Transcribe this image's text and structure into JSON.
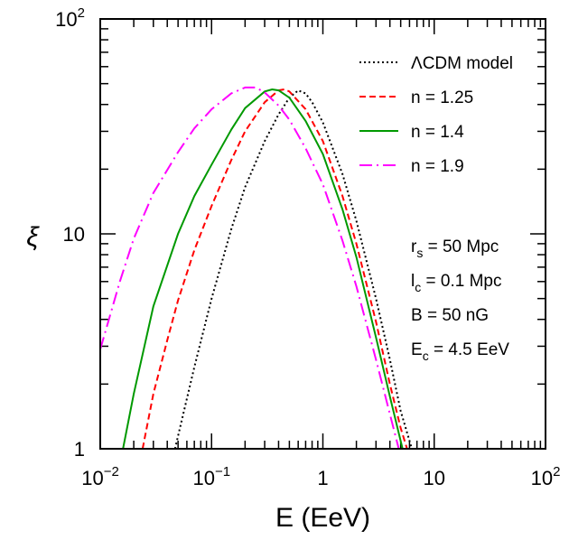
{
  "chart_data": {
    "type": "line",
    "title": "",
    "xlabel": "E (EeV)",
    "ylabel": "ξ",
    "xscale": "log",
    "yscale": "log",
    "xlim": [
      0.01,
      100
    ],
    "ylim": [
      1,
      100
    ],
    "x_ticks": [
      {
        "base": "10",
        "exp": "−2"
      },
      {
        "base": "10",
        "exp": "−1"
      },
      {
        "base": "1",
        "exp": ""
      },
      {
        "base": "10",
        "exp": ""
      },
      {
        "base": "10",
        "exp": "2"
      }
    ],
    "y_ticks": [
      {
        "base": "1",
        "exp": ""
      },
      {
        "base": "10",
        "exp": ""
      },
      {
        "base": "10",
        "exp": "2"
      }
    ],
    "series": [
      {
        "name": "ΛCDM model",
        "color": "#000000",
        "dash": "dotted",
        "points": [
          [
            0.047,
            1.0
          ],
          [
            0.07,
            2.4
          ],
          [
            0.1,
            5.0
          ],
          [
            0.15,
            10.5
          ],
          [
            0.2,
            16.5
          ],
          [
            0.3,
            27
          ],
          [
            0.4,
            36
          ],
          [
            0.5,
            43
          ],
          [
            0.6,
            46.5
          ],
          [
            0.7,
            45
          ],
          [
            0.8,
            41
          ],
          [
            1.0,
            33
          ],
          [
            1.5,
            19
          ],
          [
            2,
            11.5
          ],
          [
            3,
            5.0
          ],
          [
            4,
            2.6
          ],
          [
            5,
            1.5
          ],
          [
            6.3,
            1.0
          ]
        ]
      },
      {
        "name": "n = 1.25",
        "color": "#ff0000",
        "dash": "dashed",
        "points": [
          [
            0.024,
            1.0
          ],
          [
            0.03,
            1.8
          ],
          [
            0.04,
            3.2
          ],
          [
            0.05,
            4.9
          ],
          [
            0.07,
            8.4
          ],
          [
            0.1,
            13.5
          ],
          [
            0.15,
            22
          ],
          [
            0.2,
            30
          ],
          [
            0.3,
            41
          ],
          [
            0.4,
            46.5
          ],
          [
            0.45,
            47
          ],
          [
            0.5,
            46
          ],
          [
            0.7,
            38
          ],
          [
            1.0,
            27
          ],
          [
            1.5,
            15
          ],
          [
            2,
            9
          ],
          [
            3,
            3.9
          ],
          [
            4,
            2.0
          ],
          [
            5,
            1.25
          ],
          [
            5.7,
            1.0
          ]
        ]
      },
      {
        "name": "n = 1.4",
        "color": "#009900",
        "dash": "solid",
        "points": [
          [
            0.016,
            1.0
          ],
          [
            0.02,
            1.8
          ],
          [
            0.03,
            4.6
          ],
          [
            0.05,
            10
          ],
          [
            0.07,
            15
          ],
          [
            0.1,
            21
          ],
          [
            0.15,
            30.5
          ],
          [
            0.2,
            38.5
          ],
          [
            0.3,
            46
          ],
          [
            0.35,
            47
          ],
          [
            0.4,
            46.5
          ],
          [
            0.5,
            43
          ],
          [
            0.7,
            33.5
          ],
          [
            1.0,
            23.5
          ],
          [
            1.5,
            13
          ],
          [
            2,
            7.8
          ],
          [
            3,
            3.3
          ],
          [
            4,
            1.75
          ],
          [
            5.2,
            1.0
          ]
        ]
      },
      {
        "name": "n = 1.9",
        "color": "#ff00ff",
        "dash": "dashdot",
        "points": [
          [
            0.01,
            2.9
          ],
          [
            0.015,
            6
          ],
          [
            0.02,
            9.5
          ],
          [
            0.03,
            15.5
          ],
          [
            0.05,
            24
          ],
          [
            0.07,
            31
          ],
          [
            0.1,
            38
          ],
          [
            0.15,
            45
          ],
          [
            0.2,
            48
          ],
          [
            0.25,
            48
          ],
          [
            0.3,
            45.5
          ],
          [
            0.4,
            39.5
          ],
          [
            0.5,
            34
          ],
          [
            0.7,
            25
          ],
          [
            1.0,
            17
          ],
          [
            1.5,
            9.3
          ],
          [
            2,
            5.7
          ],
          [
            3,
            2.6
          ],
          [
            4,
            1.45
          ],
          [
            4.8,
            1.0
          ]
        ]
      }
    ],
    "legend_position": "top-right",
    "annotations": [
      {
        "id": "rs",
        "main": "r",
        "sub": "s",
        "rest": " = 50 Mpc"
      },
      {
        "id": "lc",
        "main": "l",
        "sub": "c",
        "rest": " = 0.1 Mpc"
      },
      {
        "id": "B",
        "main": "B = 50 nG",
        "sub": "",
        "rest": ""
      },
      {
        "id": "Ec",
        "main": "E",
        "sub": "c",
        "rest": " = 4.5 EeV"
      }
    ]
  }
}
